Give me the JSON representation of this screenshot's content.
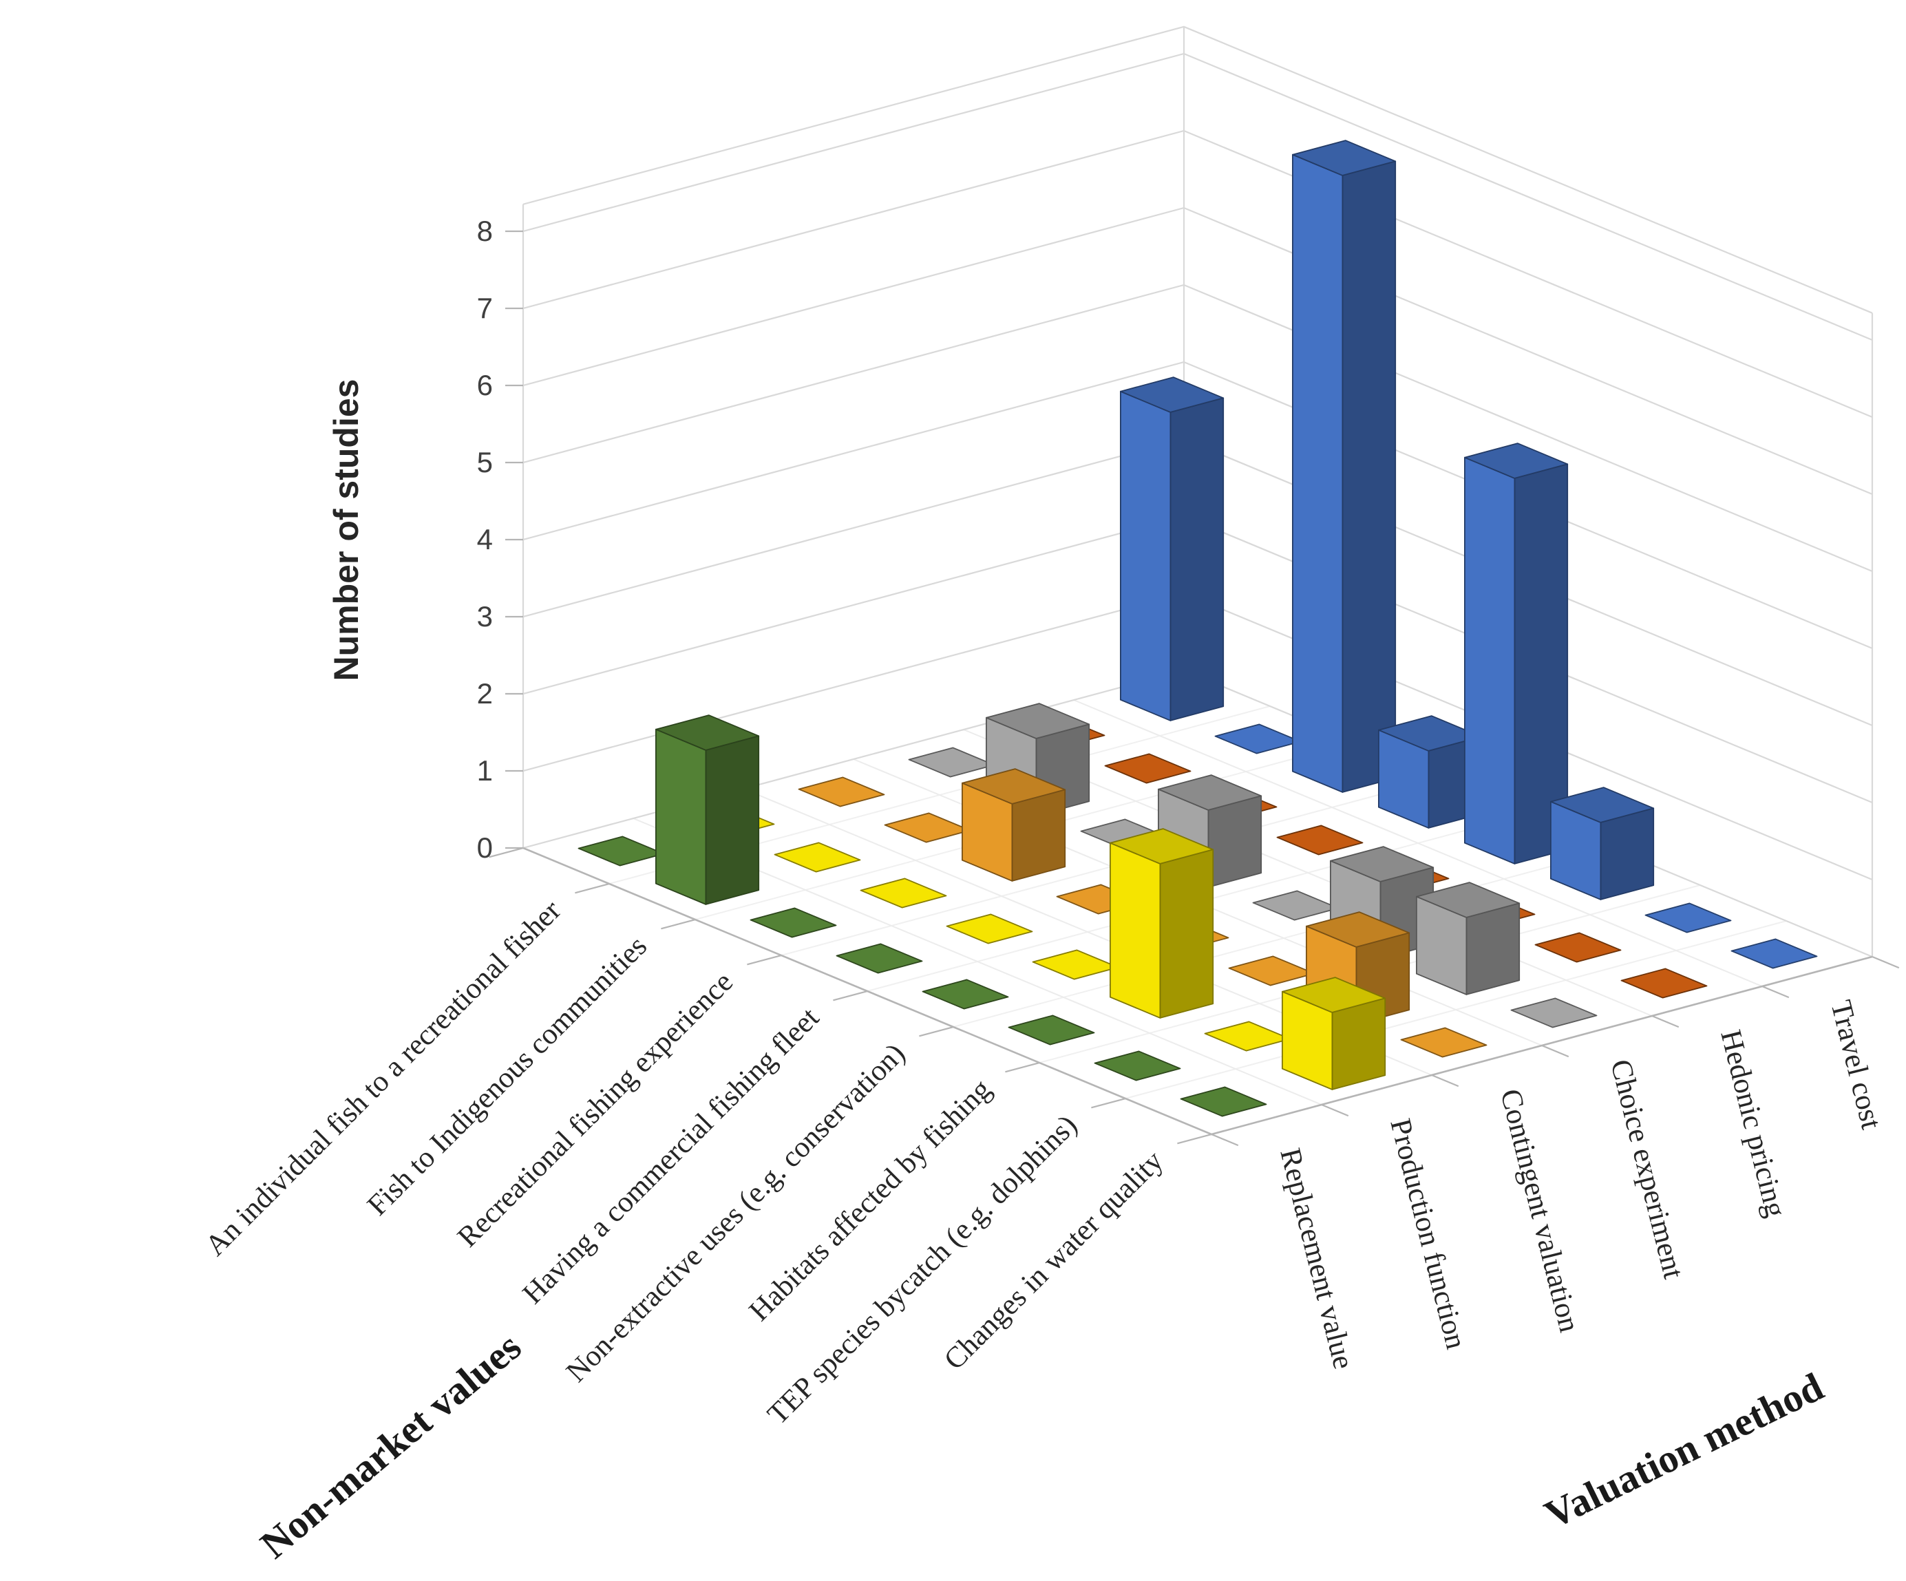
{
  "chart_data": {
    "type": "bar",
    "projection": "3d-column",
    "title": "",
    "y_axis": {
      "title": "Number of studies",
      "min": 0,
      "max": 8,
      "step": 1,
      "tick_labels": [
        "0",
        "1",
        "2",
        "3",
        "4",
        "5",
        "6",
        "7",
        "8"
      ]
    },
    "x_axis": {
      "title": "Non-market values",
      "categories": [
        "An individual fish to a recreational fisher",
        "Fish to Indigenous communities",
        "Recreational fishing experience",
        "Having a commercial fishing fleet",
        "Non-extractive uses (e.g. conservation)",
        "Habitats affected by fishing",
        "TEP species bycatch (e.g. dolphins)",
        "Changes in water quality"
      ]
    },
    "series_axis": {
      "title": "Valuation method",
      "categories": [
        "Replacement value",
        "Production function",
        "Contingent valuation",
        "Choice experiment",
        "Hedonic pricing",
        "Travel cost"
      ]
    },
    "series": [
      {
        "name": "Replacement value",
        "color": "#538135",
        "values": [
          0,
          2,
          0,
          0,
          0,
          0,
          0,
          0
        ]
      },
      {
        "name": "Production function",
        "color": "#f5e400",
        "values": [
          0,
          0,
          0,
          0,
          0,
          2,
          0,
          1
        ]
      },
      {
        "name": "Contingent valuation",
        "color": "#e69a28",
        "values": [
          0,
          0,
          1,
          0,
          0,
          0,
          1,
          0
        ]
      },
      {
        "name": "Choice experiment",
        "color": "#a5a5a5",
        "values": [
          0,
          1,
          0,
          1,
          0,
          1,
          1,
          0
        ]
      },
      {
        "name": "Hedonic pricing",
        "color": "#c55a11",
        "values": [
          0,
          0,
          0,
          0,
          0,
          0,
          0,
          0
        ]
      },
      {
        "name": "Travel cost",
        "color": "#4472c4",
        "values": [
          4,
          0,
          8,
          1,
          5,
          1,
          0,
          0
        ]
      }
    ],
    "legend": false,
    "grid": true,
    "background": "#ffffff",
    "gridline_color": "#d9d9d9",
    "axis_edge_color": "#b5b5b5",
    "text_color": "#262626"
  }
}
